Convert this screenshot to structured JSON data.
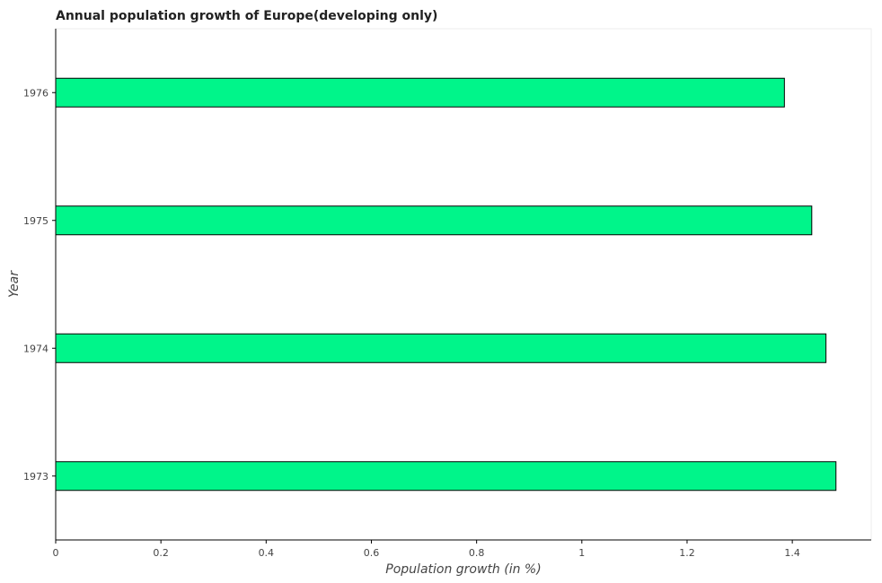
{
  "chart_data": {
    "type": "bar",
    "orientation": "horizontal",
    "title": "Annual population growth of Europe(developing only)",
    "xlabel": "Population growth (in %)",
    "ylabel": "Year",
    "categories": [
      "1973",
      "1974",
      "1975",
      "1976"
    ],
    "values": [
      1.483,
      1.464,
      1.437,
      1.385
    ],
    "xlim": [
      0,
      1.55
    ],
    "xticks": [
      0,
      0.2,
      0.4,
      0.6,
      0.8,
      1,
      1.2,
      1.4
    ],
    "xtick_labels": [
      "0",
      "0.2",
      "0.4",
      "0.6",
      "0.8",
      "1",
      "1.2",
      "1.4"
    ],
    "bar_color": "#00f58a",
    "bar_edge_color": "#000000",
    "grid": false,
    "legend": "none"
  }
}
